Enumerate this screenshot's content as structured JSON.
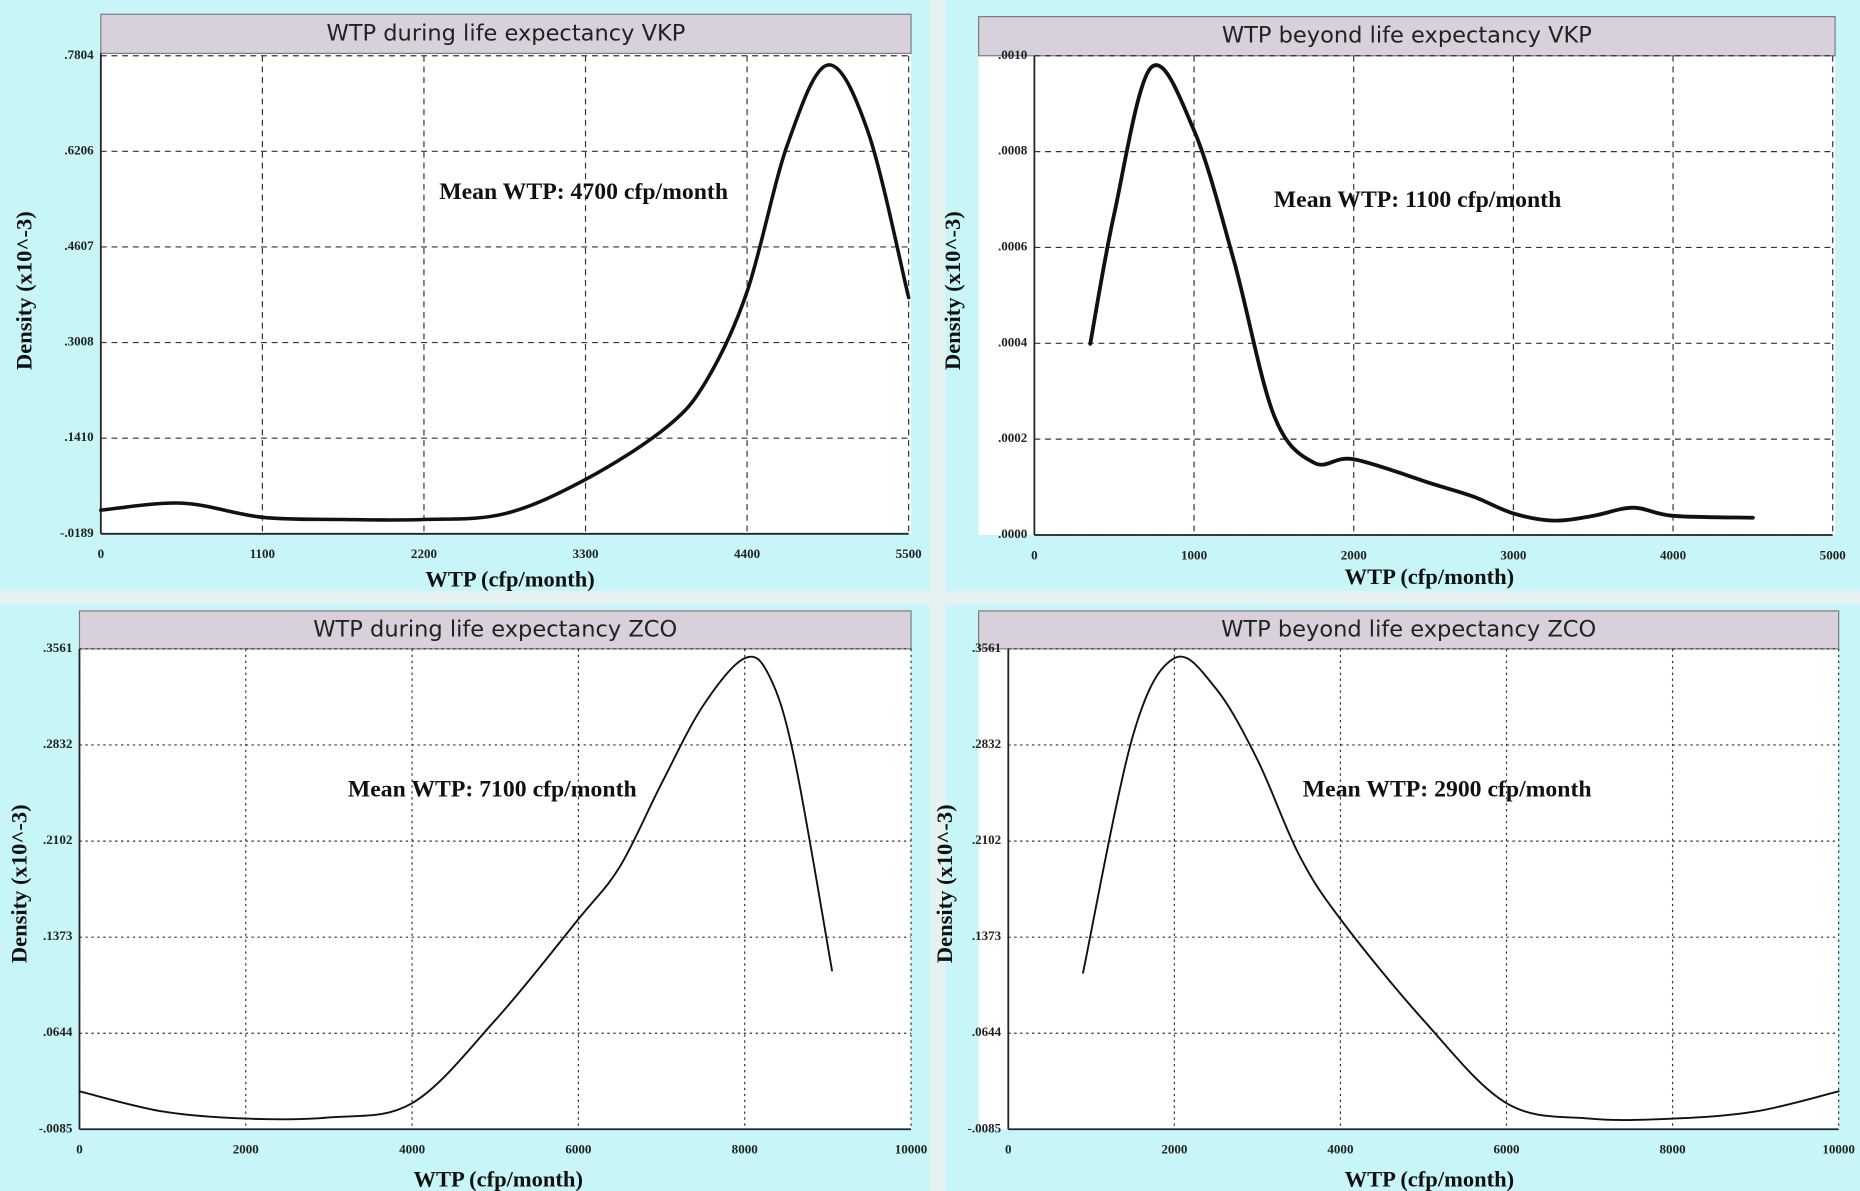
{
  "chart_data": [
    {
      "type": "line",
      "title": "WTP during life expectancy VKP",
      "x_label": "WTP (cfp/month)",
      "y_label": "Density (x10^-3)",
      "annotation": "Mean WTP: 4700 cfp/month",
      "x": [
        0,
        550,
        1100,
        1650,
        2200,
        2750,
        3300,
        3850,
        4125,
        4400,
        4675,
        4950,
        5225,
        5500
      ],
      "series": [
        {
          "color": "#111111",
          "values": [
            0.0206,
            0.0324,
            0.0087,
            0.005,
            0.005,
            0.0147,
            0.072,
            0.159,
            0.238,
            0.386,
            0.632,
            0.765,
            0.652,
            0.376
          ]
        }
      ],
      "xlim": [
        0,
        5500
      ],
      "ylim": [
        -0.0189,
        0.7804
      ],
      "xticks": [
        0,
        1100,
        2200,
        3300,
        4400,
        5500
      ],
      "yticks": [
        {
          "value": -0.0189,
          "label": "-.0189"
        },
        {
          "value": 0.141,
          "label": ".1410"
        },
        {
          "value": 0.3008,
          "label": ".3008"
        },
        {
          "value": 0.4607,
          "label": ".4607"
        },
        {
          "value": 0.6206,
          "label": ".6206"
        },
        {
          "value": 0.7804,
          "label": ".7804"
        }
      ],
      "grid": true
    },
    {
      "type": "line",
      "title": "WTP beyond life expectancy VKP",
      "x_label": "WTP (cfp/month)",
      "y_label": "Density (x10^-3)",
      "annotation": "Mean WTP: 1100 cfp/month",
      "x": [
        350,
        500,
        730,
        1000,
        1250,
        1500,
        1750,
        2000,
        2500,
        2750,
        3000,
        3250,
        3500,
        3750,
        4000,
        4500
      ],
      "series": [
        {
          "color": "#111111",
          "values": [
            0.000399,
            0.00067,
            0.000975,
            0.000844,
            0.000572,
            0.00025,
            0.000151,
            0.000158,
            0.000106,
            8e-05,
            4.5e-05,
            3e-05,
            4e-05,
            5.7e-05,
            4e-05,
            3.6e-05
          ]
        }
      ],
      "xlim": [
        0,
        5000
      ],
      "ylim": [
        0,
        0.001
      ],
      "xticks": [
        0,
        1000,
        2000,
        3000,
        4000,
        5000
      ],
      "yticks": [
        {
          "value": 0,
          "label": ".0000"
        },
        {
          "value": 0.0002,
          "label": ".0002"
        },
        {
          "value": 0.0004,
          "label": ".0004"
        },
        {
          "value": 0.0006,
          "label": ".0006"
        },
        {
          "value": 0.0008,
          "label": ".0008"
        },
        {
          "value": 0.001,
          "label": ".0010"
        }
      ],
      "grid": true
    },
    {
      "type": "line",
      "title": "WTP during life expectancy ZCO",
      "x_label": "WTP (cfp/month)",
      "y_label": "Density (x10^-3)",
      "annotation": "Mean WTP: 7100 cfp/month",
      "x": [
        0,
        1000,
        2000,
        3000,
        4000,
        5000,
        6000,
        6500,
        7000,
        7500,
        8000,
        8300,
        8600,
        9050
      ],
      "series": [
        {
          "color": "#111111",
          "values": [
            0.0203,
            0.005,
            -0.0004,
            0.0005,
            0.0113,
            0.0743,
            0.151,
            0.191,
            0.254,
            0.313,
            0.349,
            0.335,
            0.272,
            0.112
          ]
        }
      ],
      "xlim": [
        0,
        10000
      ],
      "ylim": [
        -0.0085,
        0.3561
      ],
      "xticks": [
        0,
        2000,
        4000,
        6000,
        8000,
        10000
      ],
      "yticks": [
        {
          "value": -0.0085,
          "label": "-.0085"
        },
        {
          "value": 0.0644,
          "label": ".0644"
        },
        {
          "value": 0.1373,
          "label": ".1373"
        },
        {
          "value": 0.2102,
          "label": ".2102"
        },
        {
          "value": 0.2832,
          "label": ".2832"
        },
        {
          "value": 0.3561,
          "label": ".3561"
        }
      ],
      "grid": true
    },
    {
      "type": "line",
      "title": "WTP beyond life expectancy ZCO",
      "x_label": "WTP (cfp/month)",
      "y_label": "Density (x10^-3)",
      "annotation": "Mean WTP: 2900 cfp/month",
      "x": [
        900,
        1500,
        2000,
        2500,
        3000,
        3500,
        4000,
        5000,
        6000,
        7000,
        8000,
        9000,
        10000
      ],
      "series": [
        {
          "color": "#111111",
          "values": [
            0.1103,
            0.29,
            0.349,
            0.326,
            0.272,
            0.2,
            0.151,
            0.0743,
            0.0113,
            -0.0004,
            -0.0004,
            0.005,
            0.0203
          ]
        }
      ],
      "xlim": [
        0,
        10000
      ],
      "ylim": [
        -0.0085,
        0.3561
      ],
      "xticks": [
        0,
        2000,
        4000,
        6000,
        8000,
        10000
      ],
      "yticks": [
        {
          "value": -0.0085,
          "label": "-.0085"
        },
        {
          "value": 0.0644,
          "label": ".0644"
        },
        {
          "value": 0.1373,
          "label": ".1373"
        },
        {
          "value": 0.2102,
          "label": ".2102"
        },
        {
          "value": 0.2832,
          "label": ".2832"
        },
        {
          "value": 0.3561,
          "label": ".3561"
        }
      ],
      "grid": true
    }
  ]
}
